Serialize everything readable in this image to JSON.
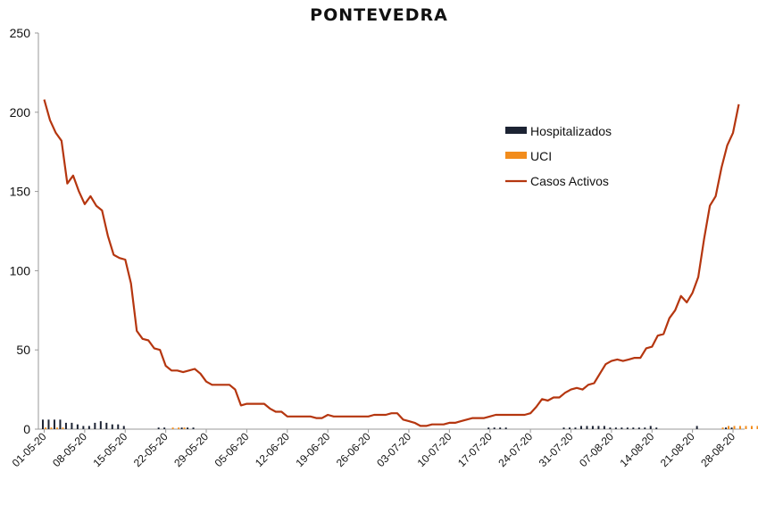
{
  "chart_data": {
    "type": "line",
    "title": "PONTEVEDRA",
    "ylim": [
      0,
      250
    ],
    "yticks": [
      "0",
      "50",
      "100",
      "150",
      "200",
      "250"
    ],
    "x_tick_labels": [
      "01-05-20",
      "08-05-20",
      "15-05-20",
      "22-05-20",
      "29-05-20",
      "05-06-20",
      "12-06-20",
      "19-06-20",
      "26-06-20",
      "03-07-20",
      "10-07-20",
      "17-07-20",
      "24-07-20",
      "31-07-20",
      "07-08-20",
      "14-08-20",
      "21-08-20",
      "28-08-20"
    ],
    "x_tick_index": [
      0,
      7,
      14,
      21,
      28,
      35,
      42,
      49,
      56,
      63,
      70,
      77,
      84,
      91,
      98,
      105,
      112,
      119
    ],
    "legend_position": "right",
    "grid": false,
    "series": [
      {
        "name": "Hospitalizados",
        "kind": "bar",
        "color": "#1c2333",
        "values": [
          6,
          6,
          6,
          6,
          4,
          4,
          3,
          2,
          2,
          4,
          5,
          4,
          3,
          3,
          2,
          0,
          0,
          0,
          0,
          0,
          1,
          1,
          0,
          0,
          1,
          1,
          1,
          0,
          0,
          0,
          0,
          0,
          0,
          0,
          0,
          0,
          0,
          0,
          0,
          0,
          0,
          0,
          0,
          0,
          0,
          0,
          0,
          0,
          0,
          0,
          0,
          0,
          0,
          0,
          0,
          0,
          0,
          0,
          0,
          0,
          0,
          0,
          0,
          0,
          0,
          0,
          0,
          0,
          0,
          0,
          0,
          0,
          0,
          0,
          0,
          0,
          0,
          1,
          1,
          1,
          1,
          0,
          0,
          0,
          0,
          0,
          0,
          0,
          0,
          0,
          1,
          1,
          1,
          2,
          2,
          2,
          2,
          2,
          1,
          1,
          1,
          1,
          1,
          1,
          1,
          2,
          1,
          0,
          0,
          0,
          0,
          0,
          0,
          2,
          0,
          0,
          0,
          0,
          1,
          1,
          0,
          0,
          0,
          0,
          0,
          0,
          3
        ]
      },
      {
        "name": "UCI",
        "kind": "bar",
        "color": "#f28c1c",
        "values": [
          1,
          1,
          1,
          1,
          0,
          0,
          0,
          0,
          0,
          0,
          0,
          0,
          0,
          0,
          0,
          0,
          0,
          0,
          0,
          0,
          0,
          0,
          1,
          1,
          1,
          0,
          0,
          0,
          0,
          0,
          0,
          0,
          0,
          0,
          0,
          0,
          0,
          0,
          0,
          0,
          0,
          0,
          0,
          0,
          0,
          0,
          0,
          0,
          0,
          0,
          0,
          0,
          0,
          0,
          0,
          0,
          0,
          0,
          0,
          0,
          0,
          0,
          0,
          0,
          0,
          0,
          0,
          0,
          0,
          0,
          0,
          0,
          0,
          0,
          0,
          0,
          0,
          0,
          0,
          0,
          0,
          0,
          0,
          0,
          0,
          0,
          0,
          0,
          0,
          0,
          0,
          0,
          0,
          0,
          0,
          0,
          0,
          0,
          0,
          0,
          0,
          0,
          0,
          0,
          0,
          0,
          0,
          0,
          0,
          0,
          0,
          0,
          0,
          0,
          0,
          0,
          0,
          1,
          2,
          2,
          2,
          2,
          2,
          2,
          2,
          2,
          2
        ]
      },
      {
        "name": "Casos Activos",
        "kind": "line",
        "color": "#b5360f",
        "values": [
          208,
          195,
          187,
          182,
          155,
          160,
          150,
          142,
          147,
          141,
          138,
          122,
          110,
          108,
          107,
          92,
          62,
          57,
          56,
          51,
          50,
          40,
          37,
          37,
          36,
          37,
          38,
          35,
          30,
          28,
          28,
          28,
          28,
          25,
          15,
          16,
          16,
          16,
          16,
          13,
          11,
          11,
          8,
          8,
          8,
          8,
          8,
          7,
          7,
          9,
          8,
          8,
          8,
          8,
          8,
          8,
          8,
          9,
          9,
          9,
          10,
          10,
          6,
          5,
          4,
          2,
          2,
          3,
          3,
          3,
          4,
          4,
          5,
          6,
          7,
          7,
          7,
          8,
          9,
          9,
          9,
          9,
          9,
          9,
          10,
          14,
          19,
          18,
          20,
          20,
          23,
          25,
          26,
          25,
          28,
          29,
          35,
          41,
          43,
          44,
          43,
          44,
          45,
          45,
          51,
          52,
          59,
          60,
          70,
          75,
          84,
          80,
          86,
          96,
          120,
          141,
          147,
          165,
          179,
          187,
          205
        ]
      }
    ]
  }
}
